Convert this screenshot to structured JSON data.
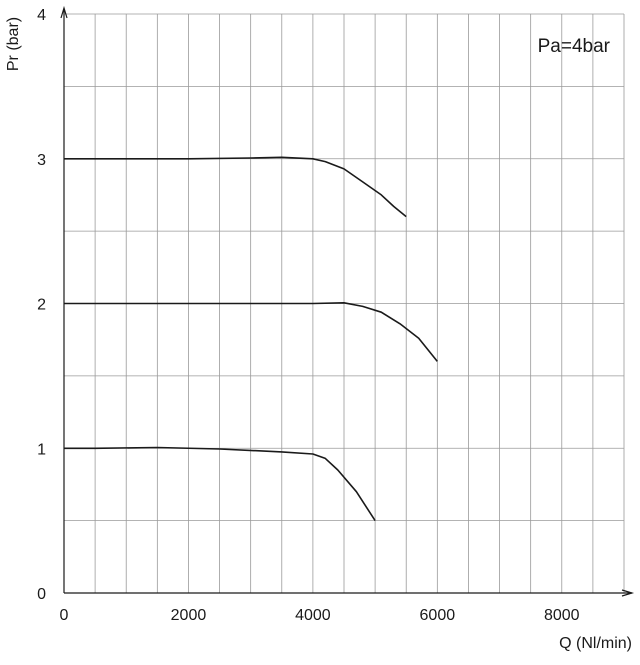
{
  "chart_data": {
    "type": "line",
    "annotation": "Pa=4bar",
    "xlabel": "Q (Nl/min)",
    "ylabel": "Pr (bar)",
    "xlim": [
      0,
      9000
    ],
    "ylim": [
      0,
      4
    ],
    "x_ticks": [
      0,
      2000,
      4000,
      6000,
      8000
    ],
    "y_ticks": [
      0,
      1,
      2,
      3,
      4
    ],
    "x_grid_step": 500,
    "y_grid_step": 0.5,
    "grid": true,
    "colors": {
      "line": "#1a1a1a",
      "grid": "#9a9a9a",
      "axis": "#1a1a1a"
    },
    "series": [
      {
        "points": [
          [
            0,
            3.0
          ],
          [
            1000,
            3.0
          ],
          [
            2000,
            3.0
          ],
          [
            3000,
            3.005
          ],
          [
            3500,
            3.01
          ],
          [
            4000,
            3.0
          ],
          [
            4200,
            2.98
          ],
          [
            4500,
            2.93
          ],
          [
            4800,
            2.84
          ],
          [
            5100,
            2.75
          ],
          [
            5300,
            2.67
          ],
          [
            5500,
            2.6
          ]
        ]
      },
      {
        "points": [
          [
            0,
            2.0
          ],
          [
            1000,
            2.0
          ],
          [
            2000,
            2.0
          ],
          [
            3000,
            2.0
          ],
          [
            4000,
            2.0
          ],
          [
            4500,
            2.005
          ],
          [
            4800,
            1.98
          ],
          [
            5100,
            1.94
          ],
          [
            5400,
            1.86
          ],
          [
            5700,
            1.76
          ],
          [
            6000,
            1.6
          ]
        ]
      },
      {
        "points": [
          [
            0,
            1.0
          ],
          [
            500,
            1.0
          ],
          [
            1500,
            1.005
          ],
          [
            2500,
            0.995
          ],
          [
            3500,
            0.975
          ],
          [
            4000,
            0.96
          ],
          [
            4200,
            0.93
          ],
          [
            4400,
            0.85
          ],
          [
            4700,
            0.7
          ],
          [
            5000,
            0.5
          ]
        ]
      }
    ]
  }
}
